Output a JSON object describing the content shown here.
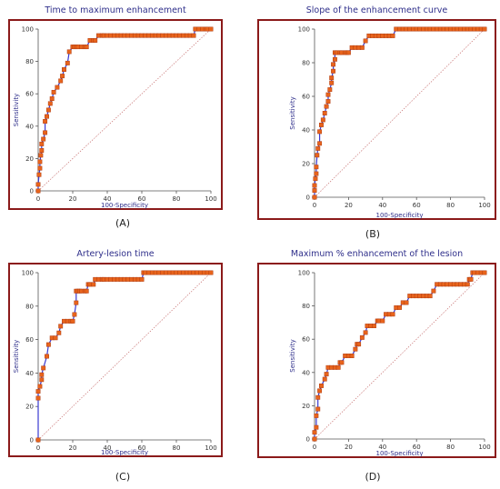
{
  "colors": {
    "frame": "#8b1a1a",
    "title": "#2e2e8a",
    "axis_label": "#2e2e8a",
    "tick_label": "#333333",
    "curve": "#3a3ad0",
    "marker": "#e8641c",
    "marker_edge": "#b03a10",
    "diagonal": "#c06060"
  },
  "chart_data": [
    {
      "type": "line",
      "title": "Time to maximum enhancement",
      "caption": "(A)",
      "xlabel": "100-Specificity",
      "ylabel": "Sensitivity",
      "xlim": [
        0,
        100
      ],
      "ylim": [
        0,
        100
      ],
      "xticks": [
        "0",
        "20",
        "40",
        "60",
        "80",
        "100"
      ],
      "yticks": [
        "0",
        "20",
        "40",
        "60",
        "80",
        "100"
      ],
      "diagonal": true,
      "series": [
        {
          "x": [
            0,
            0,
            0.5,
            1,
            1,
            1.5,
            2,
            2,
            3,
            4,
            4,
            5,
            6,
            7,
            8,
            9,
            11,
            13,
            14,
            15,
            17,
            18,
            20,
            21,
            22,
            23,
            25,
            27,
            28,
            30,
            32,
            33,
            35,
            37,
            38,
            40,
            42,
            44,
            46,
            48,
            50,
            52,
            54,
            56,
            58,
            60,
            62,
            64,
            66,
            68,
            70,
            72,
            74,
            76,
            78,
            80,
            82,
            84,
            86,
            88,
            90,
            91,
            93,
            95,
            97,
            98,
            100
          ],
          "y": [
            0,
            4,
            10,
            14,
            18,
            22,
            25,
            29,
            32,
            36,
            43,
            46,
            50,
            54,
            57,
            61,
            64,
            68,
            71,
            75,
            79,
            86,
            89,
            89,
            89,
            89,
            89,
            89,
            89,
            93,
            93,
            93,
            96,
            96,
            96,
            96,
            96,
            96,
            96,
            96,
            96,
            96,
            96,
            96,
            96,
            96,
            96,
            96,
            96,
            96,
            96,
            96,
            96,
            96,
            96,
            96,
            96,
            96,
            96,
            96,
            96,
            100,
            100,
            100,
            100,
            100,
            100
          ]
        }
      ]
    },
    {
      "type": "line",
      "title": "Slope of the enhancement curve",
      "caption": "(B)",
      "xlabel": "100-Specificity",
      "ylabel": "Sensitivity",
      "xlim": [
        0,
        100
      ],
      "ylim": [
        0,
        100
      ],
      "xticks": [
        "0",
        "20",
        "40",
        "60",
        "80",
        "100"
      ],
      "yticks": [
        "0",
        "20",
        "40",
        "60",
        "80",
        "100"
      ],
      "diagonal": true,
      "series": [
        {
          "x": [
            0,
            0,
            0,
            0.5,
            1,
            1,
            1.5,
            2,
            3,
            3,
            4,
            5,
            6,
            7,
            8,
            8,
            9,
            10,
            10,
            11,
            11,
            12,
            12,
            13,
            15,
            16,
            18,
            19,
            20,
            22,
            24,
            26,
            28,
            30,
            32,
            34,
            36,
            38,
            40,
            42,
            44,
            46,
            48,
            50,
            52,
            54,
            56,
            58,
            60,
            62,
            64,
            66,
            68,
            70,
            72,
            74,
            76,
            78,
            80,
            82,
            84,
            86,
            88,
            90,
            92,
            94,
            96,
            98,
            100
          ],
          "y": [
            0,
            4,
            7,
            11,
            14,
            18,
            25,
            29,
            32,
            39,
            43,
            46,
            50,
            54,
            57,
            61,
            64,
            68,
            71,
            75,
            79,
            82,
            86,
            86,
            86,
            86,
            86,
            86,
            86,
            89,
            89,
            89,
            89,
            93,
            96,
            96,
            96,
            96,
            96,
            96,
            96,
            96,
            100,
            100,
            100,
            100,
            100,
            100,
            100,
            100,
            100,
            100,
            100,
            100,
            100,
            100,
            100,
            100,
            100,
            100,
            100,
            100,
            100,
            100,
            100,
            100,
            100,
            100,
            100
          ]
        }
      ]
    },
    {
      "type": "line",
      "title": "Artery-lesion time",
      "caption": "(C)",
      "xlabel": "100-Specificity",
      "ylabel": "Sensitivity",
      "xlim": [
        0,
        100
      ],
      "ylim": [
        0,
        100
      ],
      "xticks": [
        "0",
        "20",
        "40",
        "60",
        "80",
        "100"
      ],
      "yticks": [
        "0",
        "20",
        "40",
        "60",
        "80",
        "100"
      ],
      "diagonal": true,
      "series": [
        {
          "x": [
            0,
            0,
            0,
            1,
            2,
            2,
            3,
            5,
            6,
            8,
            10,
            12,
            13,
            15,
            17,
            19,
            20,
            21,
            22,
            22,
            23,
            24,
            25,
            27,
            28,
            29,
            30,
            32,
            33,
            35,
            37,
            38,
            40,
            42,
            44,
            46,
            48,
            50,
            52,
            54,
            56,
            58,
            60,
            61,
            62,
            64,
            66,
            68,
            70,
            72,
            74,
            76,
            78,
            80,
            82,
            84,
            86,
            88,
            90,
            92,
            94,
            96,
            98,
            100
          ],
          "y": [
            0,
            25,
            29,
            32,
            36,
            39,
            43,
            50,
            57,
            61,
            61,
            64,
            68,
            71,
            71,
            71,
            71,
            75,
            82,
            89,
            89,
            89,
            89,
            89,
            89,
            93,
            93,
            93,
            96,
            96,
            96,
            96,
            96,
            96,
            96,
            96,
            96,
            96,
            96,
            96,
            96,
            96,
            96,
            100,
            100,
            100,
            100,
            100,
            100,
            100,
            100,
            100,
            100,
            100,
            100,
            100,
            100,
            100,
            100,
            100,
            100,
            100,
            100,
            100
          ]
        }
      ]
    },
    {
      "type": "line",
      "title": "Maximum % enhancement of the lesion",
      "caption": "(D)",
      "xlabel": "100-Specificity",
      "ylabel": "Sensitivity",
      "xlim": [
        0,
        100
      ],
      "ylim": [
        0,
        100
      ],
      "xticks": [
        "0",
        "20",
        "40",
        "60",
        "80",
        "100"
      ],
      "yticks": [
        "0",
        "20",
        "40",
        "60",
        "80",
        "100"
      ],
      "diagonal": true,
      "series": [
        {
          "x": [
            0,
            0,
            1,
            1,
            2,
            2,
            3,
            4,
            6,
            7,
            8,
            10,
            12,
            14,
            15,
            16,
            18,
            20,
            22,
            24,
            25,
            26,
            28,
            30,
            31,
            33,
            35,
            37,
            38,
            40,
            42,
            44,
            46,
            48,
            50,
            52,
            54,
            56,
            58,
            60,
            62,
            64,
            66,
            68,
            70,
            72,
            74,
            76,
            78,
            80,
            82,
            84,
            86,
            88,
            90,
            91,
            92,
            93,
            94,
            96,
            98,
            100
          ],
          "y": [
            0,
            4,
            7,
            14,
            18,
            25,
            29,
            32,
            36,
            39,
            43,
            43,
            43,
            43,
            46,
            46,
            50,
            50,
            50,
            54,
            57,
            57,
            61,
            64,
            68,
            68,
            68,
            71,
            71,
            71,
            75,
            75,
            75,
            79,
            79,
            82,
            82,
            86,
            86,
            86,
            86,
            86,
            86,
            86,
            89,
            93,
            93,
            93,
            93,
            93,
            93,
            93,
            93,
            93,
            93,
            96,
            96,
            100,
            100,
            100,
            100,
            100
          ]
        }
      ]
    }
  ]
}
